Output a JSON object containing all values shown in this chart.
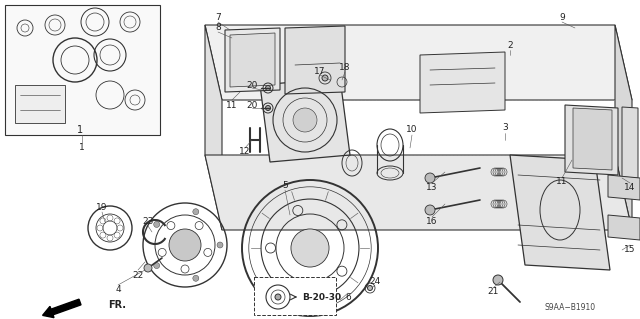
{
  "bg_color": "#ffffff",
  "line_color": "#333333",
  "text_color": "#222222",
  "diagram_code": "S9AA−B1910",
  "ref_code": "B-20-30",
  "fr_label": "FR.",
  "fig_width": 6.4,
  "fig_height": 3.19,
  "dpi": 100
}
